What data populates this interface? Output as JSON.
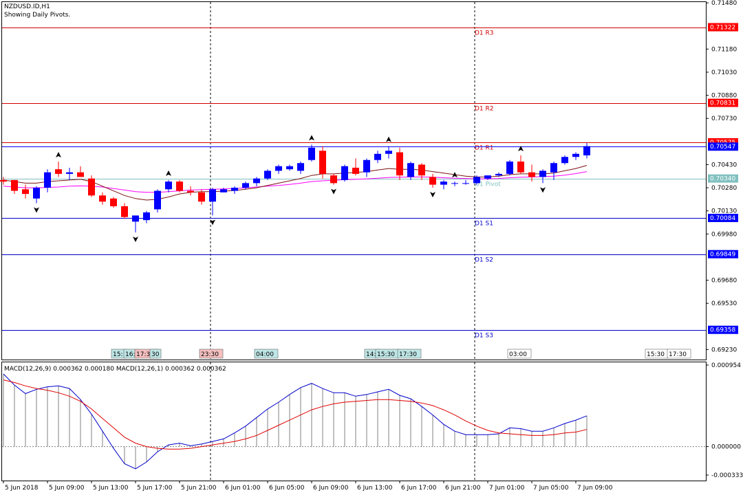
{
  "header": {
    "symbol_line": "NZDUSD.ID,H1",
    "subtitle": "Showing Daily Pivots."
  },
  "colors": {
    "bull": "#0000ff",
    "bear": "#ff0000",
    "pivot_line": "#80c0c0",
    "resistance": "#d00000",
    "support": "#0000cc",
    "ma_fast": "#7a1010",
    "ma_slow": "#ff00ff",
    "macd_line": "#0000cc",
    "signal_line": "#e00000",
    "histogram": "#808080"
  },
  "chart_data": [
    {
      "type": "candlestick",
      "symbol": "NZDUSD.ID",
      "timeframe": "H1",
      "ylim": [
        0.69165,
        0.71485
      ],
      "y_ticks": [
        "0.71480",
        "0.71180",
        "0.71030",
        "0.70880",
        "0.70730",
        "0.70430",
        "0.70280",
        "0.70130",
        "0.69980",
        "0.69680",
        "0.69530",
        "0.69230"
      ],
      "price_labels": [
        {
          "text": "0.71322",
          "color": "#ff0000"
        },
        {
          "text": "0.70831",
          "color": "#ff0000"
        },
        {
          "text": "0.70575",
          "color": "#ff0000"
        },
        {
          "text": "0.70547",
          "color": "#0000ff"
        },
        {
          "text": "0.70340",
          "color": "#80c0c0"
        },
        {
          "text": "0.70084",
          "color": "#0000ff"
        },
        {
          "text": "0.69849",
          "color": "#0000ff"
        },
        {
          "text": "0.69358",
          "color": "#0000ff"
        }
      ],
      "pivots": [
        {
          "name": "D1 R3",
          "value": 0.71322,
          "kind": "resistance"
        },
        {
          "name": "D1 R2",
          "value": 0.70831,
          "kind": "resistance"
        },
        {
          "name": "D1 R1",
          "value": 0.70575,
          "kind": "resistance"
        },
        {
          "name": "D1 Pivot",
          "value": 0.7034,
          "kind": "pivot"
        },
        {
          "name": "D1 S1",
          "value": 0.70084,
          "kind": "support"
        },
        {
          "name": "D1 S2",
          "value": 0.69849,
          "kind": "support"
        },
        {
          "name": "D1 S3",
          "value": 0.69358,
          "kind": "support"
        }
      ],
      "current_price": 0.70547,
      "session_labels": [
        "15:",
        "16:",
        "17:35",
        "30",
        "23:30",
        "04:00",
        "14:",
        "15:30",
        "17:30",
        "03:00",
        "15:30",
        "17:30"
      ],
      "x_labels": [
        "5 Jun 2018",
        "5 Jun 09:00",
        "5 Jun 13:00",
        "5 Jun 17:00",
        "5 Jun 21:00",
        "6 Jun 01:00",
        "6 Jun 05:00",
        "6 Jun 09:00",
        "6 Jun 13:00",
        "6 Jun 17:00",
        "6 Jun 21:00",
        "7 Jun 01:00",
        "7 Jun 05:00",
        "7 Jun 09:00"
      ],
      "candles": [
        {
          "o": 0.7033,
          "h": 0.7035,
          "l": 0.703,
          "c": 0.7032
        },
        {
          "o": 0.7033,
          "h": 0.7033,
          "l": 0.7024,
          "c": 0.7026
        },
        {
          "o": 0.7027,
          "h": 0.703,
          "l": 0.7021,
          "c": 0.7024
        },
        {
          "o": 0.7021,
          "h": 0.7029,
          "l": 0.7018,
          "c": 0.7028
        },
        {
          "o": 0.7028,
          "h": 0.704,
          "l": 0.7025,
          "c": 0.7038
        },
        {
          "o": 0.704,
          "h": 0.7045,
          "l": 0.7035,
          "c": 0.7037
        },
        {
          "o": 0.7037,
          "h": 0.7041,
          "l": 0.7033,
          "c": 0.7038
        },
        {
          "o": 0.7038,
          "h": 0.7042,
          "l": 0.7035,
          "c": 0.7035
        },
        {
          "o": 0.7034,
          "h": 0.7036,
          "l": 0.7022,
          "c": 0.7023
        },
        {
          "o": 0.7023,
          "h": 0.7025,
          "l": 0.7017,
          "c": 0.7019
        },
        {
          "o": 0.7021,
          "h": 0.7022,
          "l": 0.7015,
          "c": 0.7016
        },
        {
          "o": 0.7016,
          "h": 0.7018,
          "l": 0.7008,
          "c": 0.7009
        },
        {
          "o": 0.7006,
          "h": 0.7009,
          "l": 0.6999,
          "c": 0.701
        },
        {
          "o": 0.7007,
          "h": 0.7013,
          "l": 0.7005,
          "c": 0.7012
        },
        {
          "o": 0.7014,
          "h": 0.7027,
          "l": 0.7012,
          "c": 0.7026
        },
        {
          "o": 0.7027,
          "h": 0.7033,
          "l": 0.7025,
          "c": 0.7032
        },
        {
          "o": 0.7032,
          "h": 0.7033,
          "l": 0.7025,
          "c": 0.7026
        },
        {
          "o": 0.7026,
          "h": 0.7029,
          "l": 0.7023,
          "c": 0.7025
        },
        {
          "o": 0.7025,
          "h": 0.7027,
          "l": 0.7017,
          "c": 0.7019
        },
        {
          "o": 0.7019,
          "h": 0.7028,
          "l": 0.701,
          "c": 0.7027
        },
        {
          "o": 0.7025,
          "h": 0.7028,
          "l": 0.7025,
          "c": 0.7027
        },
        {
          "o": 0.7026,
          "h": 0.7029,
          "l": 0.7024,
          "c": 0.7028
        },
        {
          "o": 0.7028,
          "h": 0.7032,
          "l": 0.7027,
          "c": 0.7031
        },
        {
          "o": 0.7031,
          "h": 0.7035,
          "l": 0.7029,
          "c": 0.7034
        },
        {
          "o": 0.7034,
          "h": 0.704,
          "l": 0.7033,
          "c": 0.7039
        },
        {
          "o": 0.7039,
          "h": 0.7043,
          "l": 0.7037,
          "c": 0.7042
        },
        {
          "o": 0.704,
          "h": 0.7043,
          "l": 0.7039,
          "c": 0.7042
        },
        {
          "o": 0.7039,
          "h": 0.7045,
          "l": 0.7037,
          "c": 0.7044
        },
        {
          "o": 0.7046,
          "h": 0.7056,
          "l": 0.7045,
          "c": 0.7054
        },
        {
          "o": 0.7052,
          "h": 0.7055,
          "l": 0.7034,
          "c": 0.7037
        },
        {
          "o": 0.7036,
          "h": 0.7037,
          "l": 0.703,
          "c": 0.7031
        },
        {
          "o": 0.7033,
          "h": 0.7043,
          "l": 0.7032,
          "c": 0.7042
        },
        {
          "o": 0.7041,
          "h": 0.7047,
          "l": 0.7036,
          "c": 0.7037
        },
        {
          "o": 0.7038,
          "h": 0.7047,
          "l": 0.7035,
          "c": 0.7046
        },
        {
          "o": 0.7046,
          "h": 0.7052,
          "l": 0.7044,
          "c": 0.705
        },
        {
          "o": 0.705,
          "h": 0.7055,
          "l": 0.7047,
          "c": 0.7052
        },
        {
          "o": 0.7051,
          "h": 0.7054,
          "l": 0.7033,
          "c": 0.7036
        },
        {
          "o": 0.7035,
          "h": 0.7045,
          "l": 0.7033,
          "c": 0.7044
        },
        {
          "o": 0.7043,
          "h": 0.7044,
          "l": 0.7033,
          "c": 0.7036
        },
        {
          "o": 0.7035,
          "h": 0.7037,
          "l": 0.7028,
          "c": 0.703
        },
        {
          "o": 0.703,
          "h": 0.7033,
          "l": 0.7027,
          "c": 0.7032
        },
        {
          "o": 0.7031,
          "h": 0.7032,
          "l": 0.7029,
          "c": 0.7031
        },
        {
          "o": 0.7031,
          "h": 0.7033,
          "l": 0.703,
          "c": 0.7031
        },
        {
          "o": 0.7031,
          "h": 0.7036,
          "l": 0.703,
          "c": 0.7035
        },
        {
          "o": 0.7034,
          "h": 0.7036,
          "l": 0.7033,
          "c": 0.7036
        },
        {
          "o": 0.7036,
          "h": 0.7038,
          "l": 0.7035,
          "c": 0.7037
        },
        {
          "o": 0.7037,
          "h": 0.7046,
          "l": 0.7036,
          "c": 0.7045
        },
        {
          "o": 0.7045,
          "h": 0.7049,
          "l": 0.7037,
          "c": 0.7038
        },
        {
          "o": 0.7038,
          "h": 0.7043,
          "l": 0.7032,
          "c": 0.7035
        },
        {
          "o": 0.7035,
          "h": 0.704,
          "l": 0.7031,
          "c": 0.7039
        },
        {
          "o": 0.7038,
          "h": 0.7045,
          "l": 0.7033,
          "c": 0.7044
        },
        {
          "o": 0.7044,
          "h": 0.7049,
          "l": 0.7043,
          "c": 0.7048
        },
        {
          "o": 0.7048,
          "h": 0.7051,
          "l": 0.7046,
          "c": 0.705
        },
        {
          "o": 0.7049,
          "h": 0.7057,
          "l": 0.7047,
          "c": 0.7055
        }
      ],
      "ma_fast": [
        0.7033,
        0.7032,
        0.7031,
        0.7031,
        0.7032,
        0.70325,
        0.7033,
        0.70335,
        0.7032,
        0.7029,
        0.7026,
        0.7023,
        0.7021,
        0.702,
        0.70205,
        0.7022,
        0.7024,
        0.7025,
        0.70255,
        0.70255,
        0.70258,
        0.70262,
        0.7027,
        0.7028,
        0.70295,
        0.7031,
        0.70325,
        0.7034,
        0.7036,
        0.7037,
        0.7037,
        0.70375,
        0.7038,
        0.70385,
        0.70395,
        0.70405,
        0.704,
        0.704,
        0.70395,
        0.70385,
        0.70375,
        0.70365,
        0.70355,
        0.7035,
        0.7035,
        0.70355,
        0.70365,
        0.7037,
        0.7037,
        0.7037,
        0.70375,
        0.7039,
        0.70405,
        0.70425
      ],
      "ma_slow": [
        0.7029,
        0.70285,
        0.7028,
        0.7028,
        0.70282,
        0.70285,
        0.7029,
        0.70292,
        0.7029,
        0.70285,
        0.70275,
        0.70265,
        0.70255,
        0.7025,
        0.7025,
        0.70255,
        0.7026,
        0.70265,
        0.70268,
        0.7027,
        0.70272,
        0.70275,
        0.7028,
        0.70285,
        0.7029,
        0.70295,
        0.70302,
        0.7031,
        0.7032,
        0.70325,
        0.70328,
        0.70332,
        0.70335,
        0.70338,
        0.70342,
        0.70347,
        0.70348,
        0.7035,
        0.7035,
        0.70348,
        0.70345,
        0.70342,
        0.7034,
        0.70338,
        0.70338,
        0.7034,
        0.70345,
        0.70348,
        0.7035,
        0.70352,
        0.70355,
        0.70362,
        0.70372,
        0.70385
      ],
      "arrows_up": [
        5,
        15,
        28,
        35,
        41,
        47
      ],
      "arrows_down": [
        3,
        12,
        19,
        30,
        39,
        49
      ]
    },
    {
      "type": "macd",
      "label": "MACD(12,26,9) 0.000362 0.000180 MACD(12,26,1) 0.000362 0.000362",
      "ylim": [
        -0.000333,
        0.000954
      ],
      "y_ticks": [
        "0.000954",
        "0.000000",
        "-0.000333"
      ],
      "histogram": [
        0.00085,
        0.00072,
        0.00062,
        0.00067,
        0.0007,
        0.00071,
        0.00068,
        0.00055,
        0.00038,
        0.00018,
        -2e-05,
        -0.0002,
        -0.00026,
        -0.00018,
        -6e-05,
        2e-05,
        4e-05,
        1e-05,
        3e-05,
        6e-05,
        9e-05,
        0.00016,
        0.00024,
        0.00034,
        0.00044,
        0.00052,
        0.00061,
        0.00069,
        0.00074,
        0.00068,
        0.00063,
        0.00063,
        0.00059,
        0.00061,
        0.00064,
        0.00067,
        0.0006,
        0.00056,
        0.00047,
        0.00037,
        0.00026,
        0.00018,
        0.00014,
        0.00014,
        0.00014,
        0.00015,
        0.00022,
        0.00021,
        0.00018,
        0.00018,
        0.00022,
        0.00027,
        0.00031,
        0.00036
      ],
      "signal": [
        0.00078,
        0.00075,
        0.00071,
        0.00068,
        0.00066,
        0.00063,
        0.00059,
        0.00053,
        0.00044,
        0.00033,
        0.00022,
        0.00011,
        4e-05,
        0.0,
        -2e-05,
        -3e-05,
        -3e-05,
        -2e-05,
        0.0,
        2e-05,
        4e-05,
        6e-05,
        9e-05,
        0.00013,
        0.00019,
        0.00025,
        0.00031,
        0.00037,
        0.00043,
        0.00047,
        0.0005,
        0.00052,
        0.00053,
        0.00054,
        0.00055,
        0.00055,
        0.00054,
        0.00053,
        0.00051,
        0.00048,
        0.00043,
        0.00037,
        0.0003,
        0.00024,
        0.00019,
        0.00016,
        0.00015,
        0.00014,
        0.00013,
        0.00013,
        0.00014,
        0.00016,
        0.00017,
        0.0002
      ]
    }
  ]
}
